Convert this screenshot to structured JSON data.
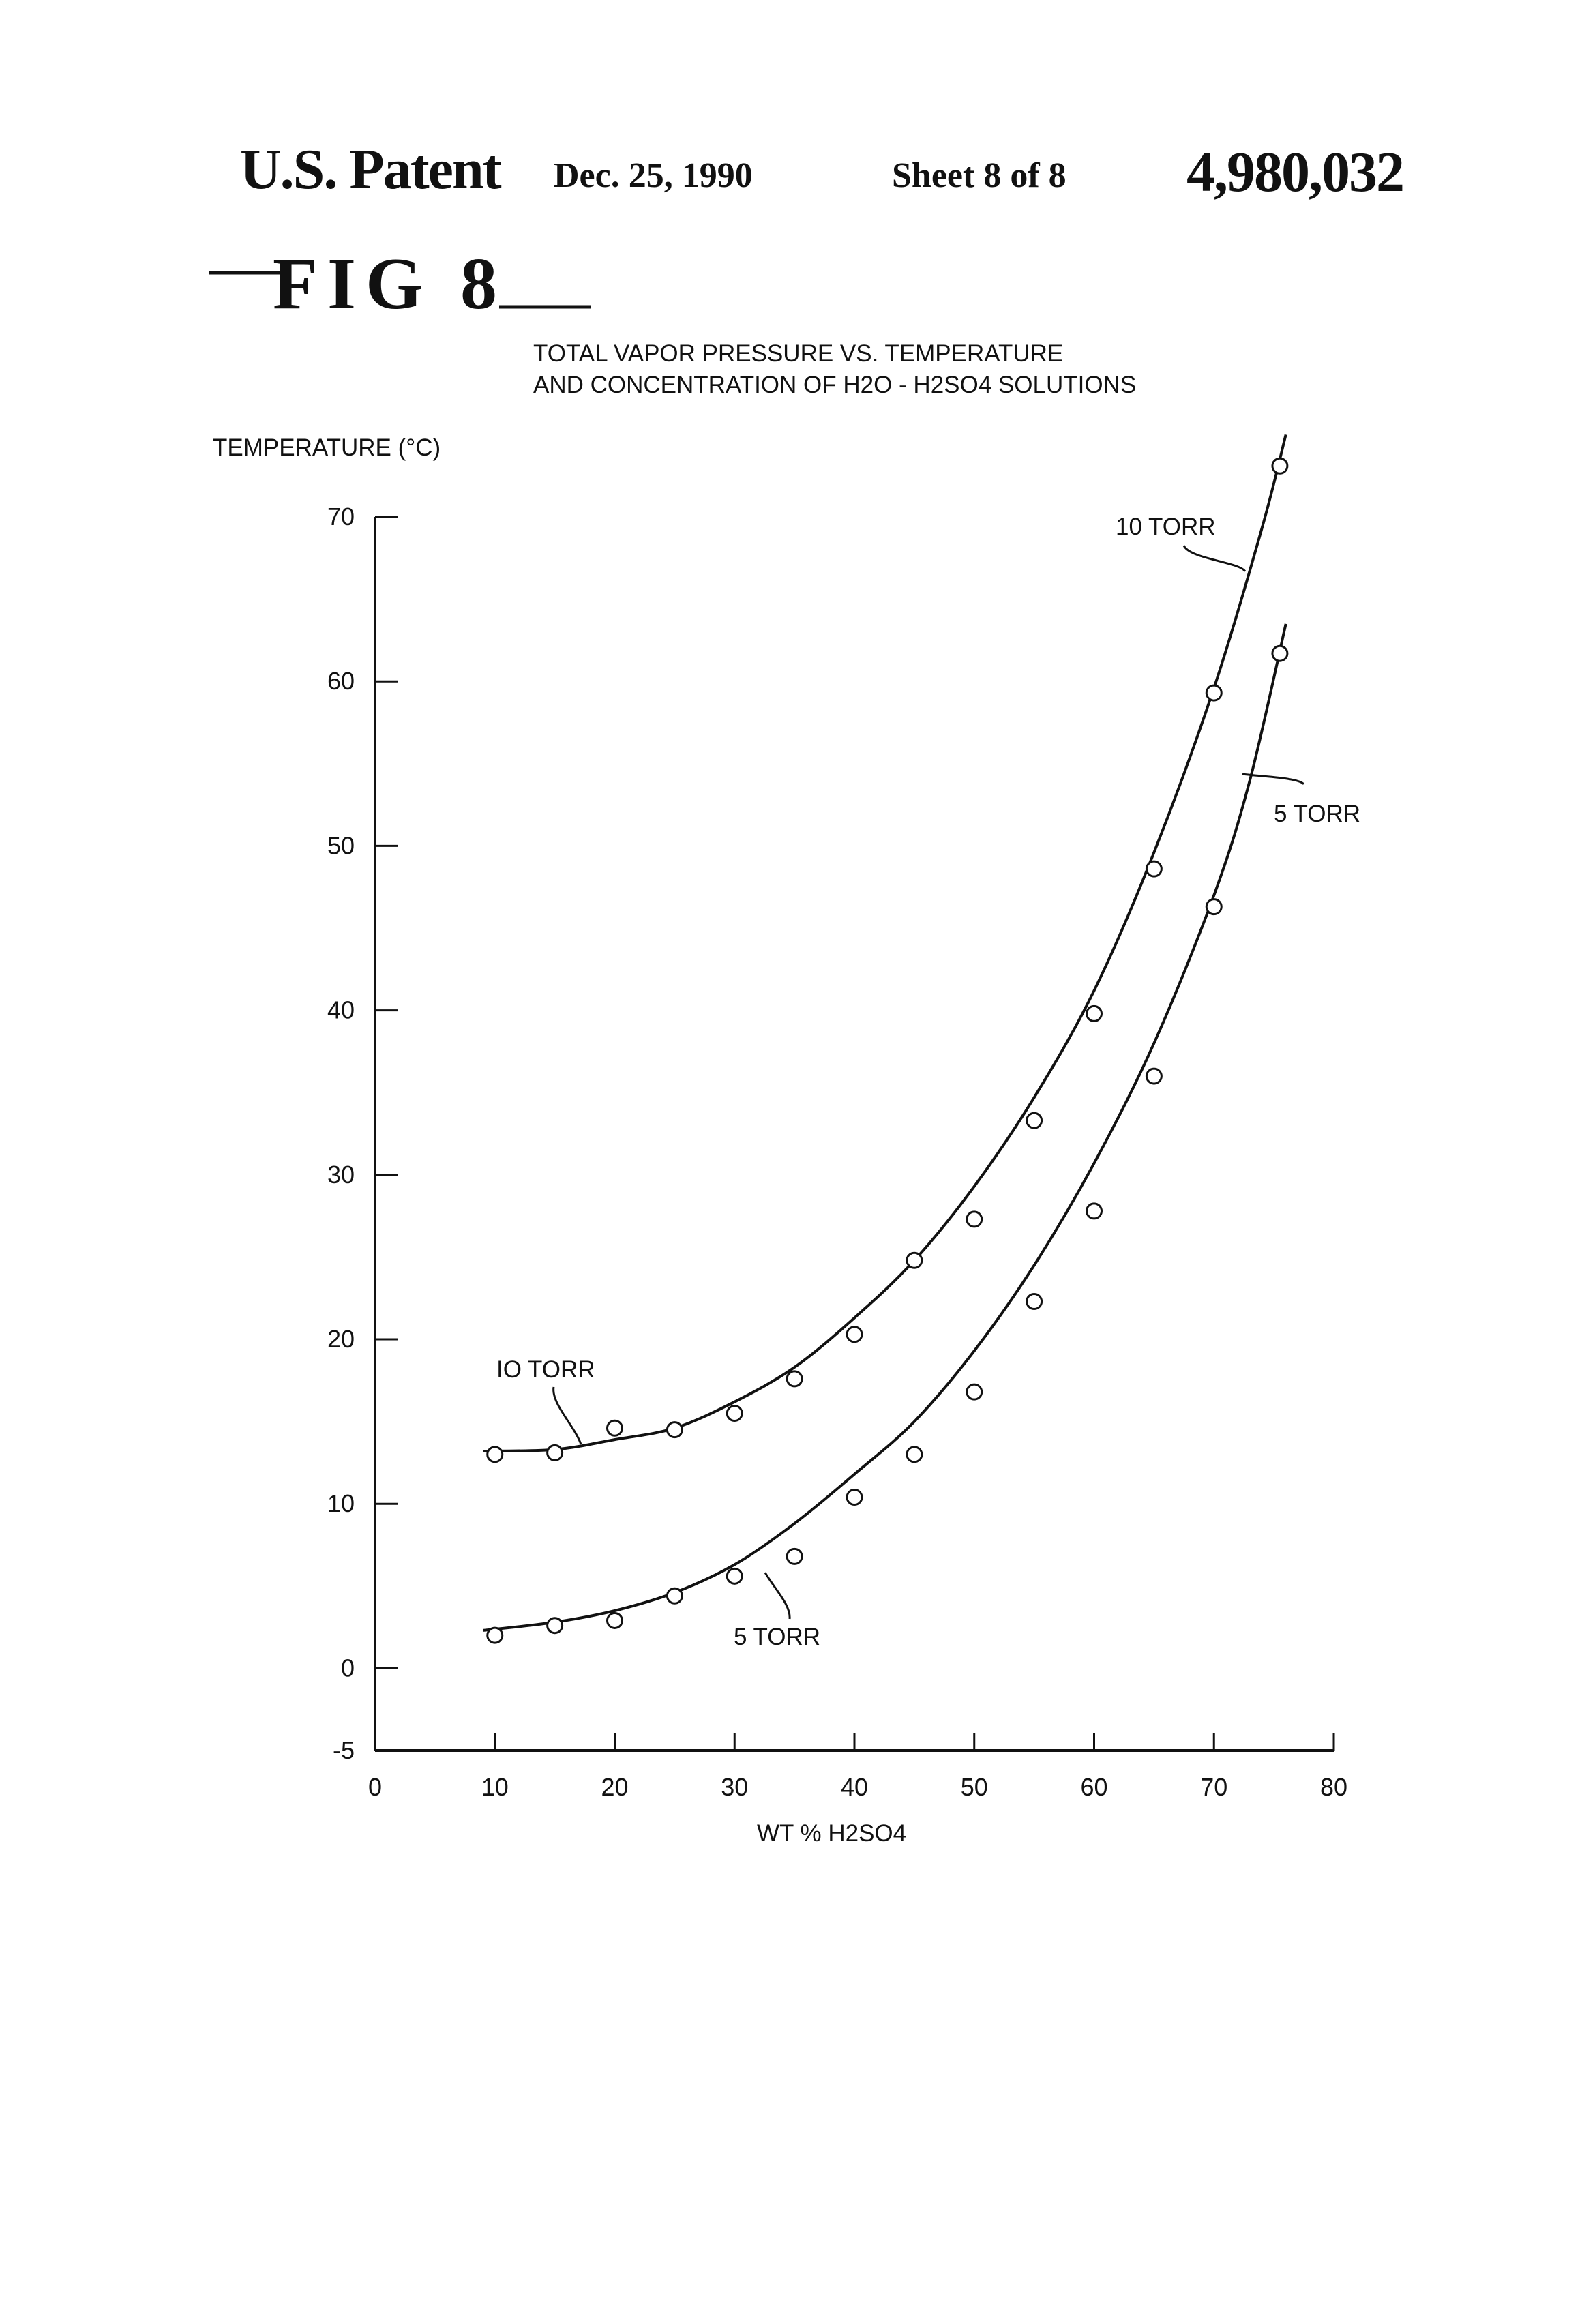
{
  "header": {
    "title": "U.S. Patent",
    "date": "Dec. 25, 1990",
    "sheet": "Sheet 8 of 8",
    "patent_number": "4,980,032"
  },
  "figure": {
    "label": "FIG 8"
  },
  "chart_data": {
    "type": "line",
    "title_line1": "TOTAL VAPOR PRESSURE VS. TEMPERATURE",
    "title_line2": "AND CONCENTRATION OF H2O - H2SO4 SOLUTIONS",
    "ylabel": "TEMPERATURE (°C)",
    "xlabel": "WT % H2SO4",
    "xlim": [
      0,
      80
    ],
    "ylim": [
      -5,
      70
    ],
    "xticks": [
      0,
      10,
      20,
      30,
      40,
      50,
      60,
      70,
      80
    ],
    "yticks": [
      -5,
      0,
      10,
      20,
      30,
      40,
      50,
      60,
      70
    ],
    "grid": false,
    "series": [
      {
        "name": "10 TORR",
        "points": [
          [
            10,
            13.0
          ],
          [
            15,
            13.1
          ],
          [
            20,
            14.6
          ],
          [
            25,
            14.5
          ],
          [
            30,
            15.5
          ],
          [
            35,
            17.6
          ],
          [
            40,
            20.3
          ],
          [
            45,
            24.8
          ],
          [
            50,
            27.3
          ],
          [
            55,
            33.3
          ],
          [
            60,
            39.8
          ],
          [
            65,
            48.6
          ],
          [
            70,
            59.3
          ],
          [
            75.5,
            73.1
          ]
        ],
        "curve": [
          [
            9,
            13.2
          ],
          [
            15,
            13.3
          ],
          [
            20,
            13.9
          ],
          [
            25,
            14.6
          ],
          [
            30,
            16.2
          ],
          [
            35,
            18.3
          ],
          [
            40,
            21.3
          ],
          [
            45,
            24.8
          ],
          [
            50,
            29.3
          ],
          [
            55,
            34.7
          ],
          [
            60,
            41.2
          ],
          [
            65,
            49.6
          ],
          [
            70,
            59.6
          ],
          [
            74,
            69.3
          ],
          [
            76,
            75.0
          ]
        ]
      },
      {
        "name": "5 TORR",
        "points": [
          [
            10,
            2.0
          ],
          [
            15,
            2.6
          ],
          [
            20,
            2.9
          ],
          [
            25,
            4.4
          ],
          [
            30,
            5.6
          ],
          [
            35,
            6.8
          ],
          [
            40,
            10.4
          ],
          [
            45,
            13.0
          ],
          [
            50,
            16.8
          ],
          [
            55,
            22.3
          ],
          [
            60,
            27.8
          ],
          [
            65,
            36.0
          ],
          [
            70,
            46.3
          ],
          [
            75.5,
            61.7
          ]
        ],
        "curve": [
          [
            9,
            2.3
          ],
          [
            15,
            2.8
          ],
          [
            20,
            3.5
          ],
          [
            25,
            4.6
          ],
          [
            30,
            6.3
          ],
          [
            35,
            8.8
          ],
          [
            40,
            11.8
          ],
          [
            45,
            15.0
          ],
          [
            50,
            19.3
          ],
          [
            55,
            24.5
          ],
          [
            60,
            30.7
          ],
          [
            65,
            38.0
          ],
          [
            70,
            47.0
          ],
          [
            73,
            54.0
          ],
          [
            76,
            63.5
          ]
        ]
      }
    ],
    "annotations": [
      {
        "text": "10 TORR",
        "series": "10 TORR",
        "position": "upper-right"
      },
      {
        "text": "5 TORR",
        "series": "5 TORR",
        "position": "right"
      },
      {
        "text": "IO TORR",
        "series": "10 TORR",
        "position": "lower-left"
      },
      {
        "text": "5 TORR",
        "series": "5 TORR",
        "position": "lower-middle"
      }
    ]
  }
}
